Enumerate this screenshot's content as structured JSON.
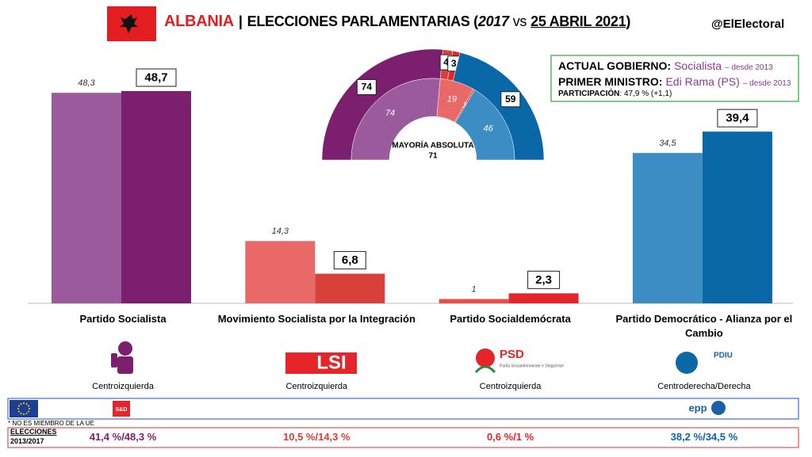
{
  "header": {
    "country": "ALBANIA",
    "sep": "|",
    "title": "ELECCIONES PARLAMENTARIAS (",
    "year_prev": "2017",
    "vs": "vs",
    "date": "25 ABRIL 2021",
    "close": ")",
    "handle": "@ElElectoral"
  },
  "info": {
    "gov_label": "ACTUAL GOBIERNO:",
    "gov": "Socialista",
    "gov_since": "– desde 2013",
    "pm_label": "PRIMER MINISTRO:",
    "pm": "Edi Rama (PS)",
    "pm_since": "– desde 2013",
    "part_label": "PARTICIPACIÓN",
    "part": ": 47,9 % (+1,1)"
  },
  "chart_data": [
    {
      "type": "bar",
      "categories": [
        "Partido Socialista",
        "Movimiento Socialista por la Integración",
        "Partido Socialdemócrata",
        "Partido Democrático - Alianza por el Cambio"
      ],
      "series": [
        {
          "values": [
            48.3,
            14.3,
            1,
            34.5
          ],
          "value_labels": [
            "48,3",
            "14,3",
            "1",
            "34,5"
          ],
          "colors": [
            "#9b5a9b",
            "#e96868",
            "#ee4b4b",
            "#3b8dc4"
          ]
        },
        {
          "values": [
            48.7,
            6.8,
            2.3,
            39.4
          ],
          "value_labels": [
            "48,7",
            "6,8",
            "2,3",
            "39,4"
          ],
          "colors": [
            "#7b1f6e",
            "#d9403a",
            "#e5252a",
            "#0a68a6"
          ]
        }
      ]
    },
    {
      "type": "hemicycle",
      "series": [
        {
          "values": [
            74,
            4,
            3,
            59
          ],
          "colors": [
            "#7b1f6e",
            "#d9403a",
            "#e5252a",
            "#0a68a6"
          ]
        },
        {
          "values": [
            74,
            19,
            1,
            46
          ],
          "colors": [
            "#9b5a9b",
            "#e96868",
            "#ee4b4b",
            "#3b8dc4"
          ]
        }
      ],
      "annotation": "MAYORÍA ABSOLUTA",
      "majority": 71
    }
  ],
  "parties": [
    {
      "ideology": "Centroizquierda"
    },
    {
      "ideology": "Centroizquierda"
    },
    {
      "ideology": "Centroizquierda"
    },
    {
      "ideology": "Centroderecha/Derecha"
    }
  ],
  "logos": {
    "lsi": "LSI",
    "psd": "PSD",
    "psd_sub": "Partia Socialdemokrate e Shqipërisë",
    "pdiu": "PDIU",
    "sd": "S&D",
    "epp": "epp"
  },
  "footer": {
    "note": "* NO ES MIEMBRO DE LA UE",
    "label1": "ELECCIONES",
    "label2": "2013/2017",
    "results": [
      "41,4 %/48,3 %",
      "10,5 %/14,3 %",
      "0,6 %/1 %",
      "38,2 %/34,5 %"
    ]
  }
}
